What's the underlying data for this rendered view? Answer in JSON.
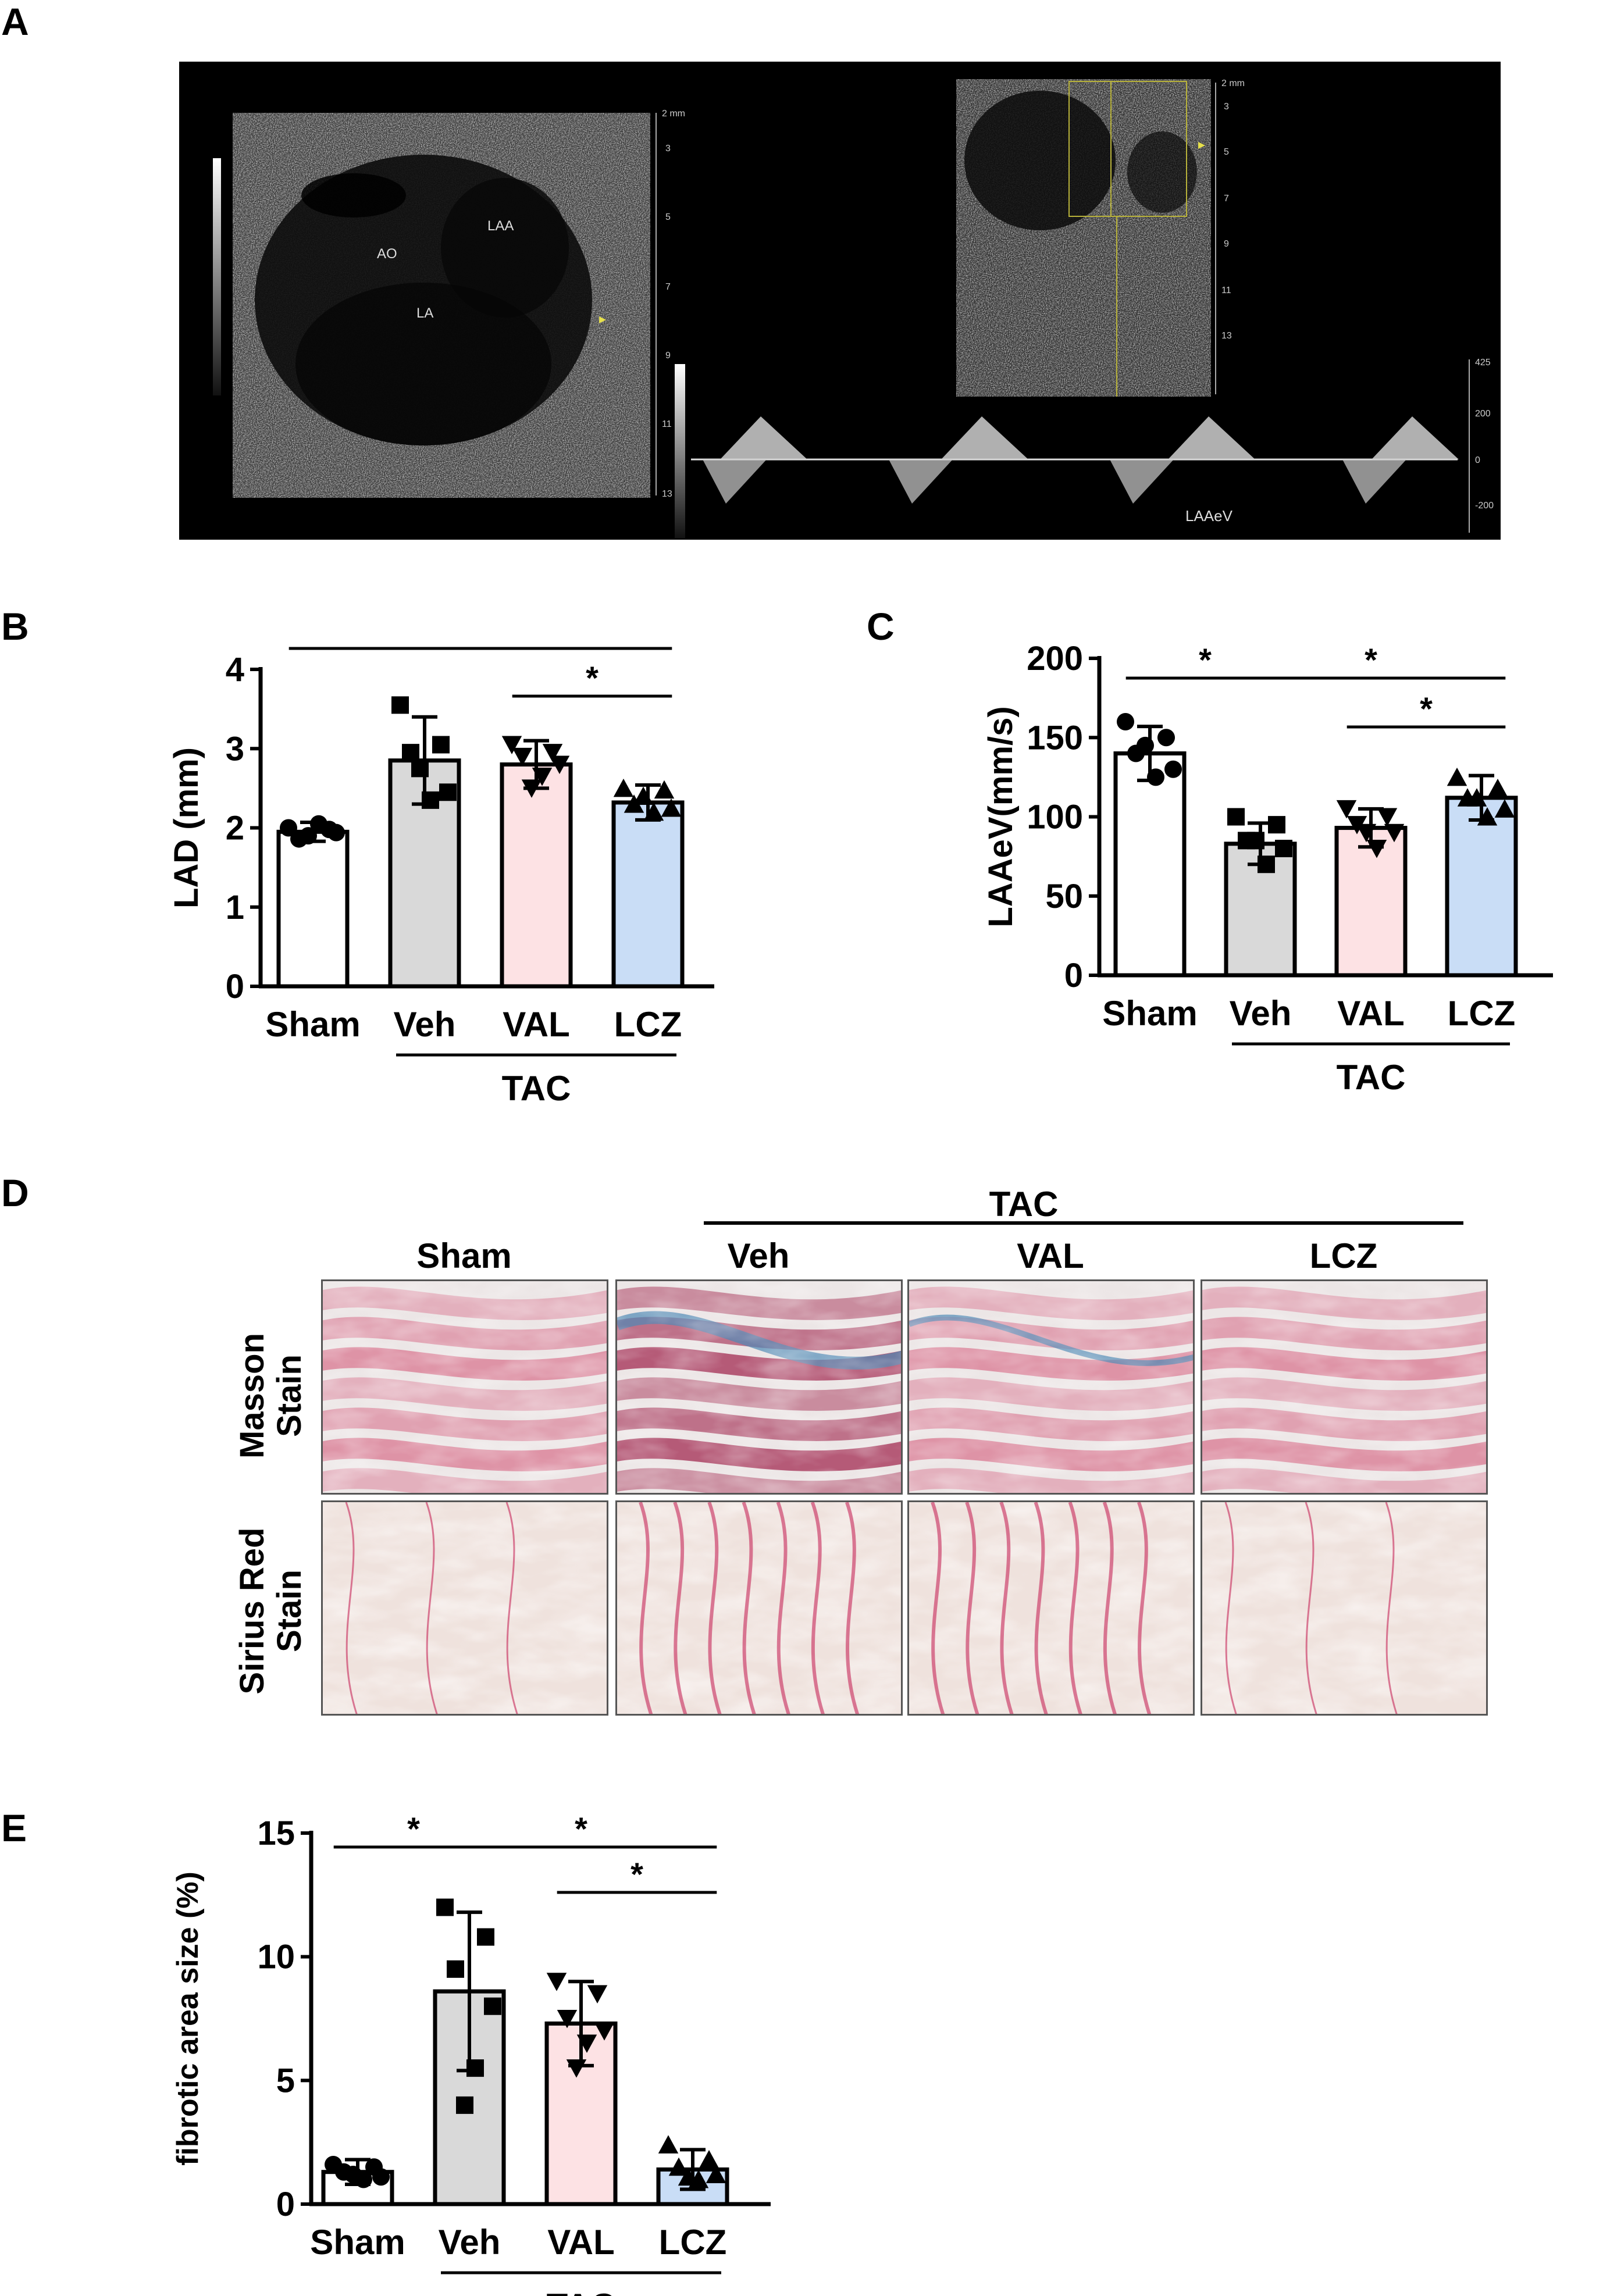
{
  "panels": {
    "A": {
      "label": "A",
      "echo": {
        "image_labels": [
          "LAA",
          "AO",
          "LA"
        ],
        "depth_ticks": [
          "2 mm",
          "3",
          "5",
          "7",
          "9",
          "11",
          "13"
        ],
        "doppler_label": "LAAeV",
        "velocity_ticks": [
          "425",
          "200",
          "0",
          "-200"
        ]
      }
    },
    "B": {
      "label": "B"
    },
    "C": {
      "label": "C"
    },
    "D": {
      "label": "D",
      "group_label": "TAC",
      "columns": [
        "Sham",
        "Veh",
        "VAL",
        "LCZ"
      ],
      "rows": [
        {
          "line1": "Masson",
          "line2": "Stain"
        },
        {
          "line1": "Sirius Red",
          "line2": "Stain"
        }
      ],
      "tint_colors": {
        "masson_muscle": "#d9738e",
        "masson_dark": "#a0244c",
        "masson_collagen": "#4f89b5",
        "sirius_bg": "#efe2dd",
        "sirius_fiber": "#c6285a"
      }
    },
    "E": {
      "label": "E"
    }
  },
  "chart_data": [
    {
      "id": "B",
      "type": "bar",
      "categories": [
        "Sham",
        "Veh",
        "VAL",
        "LCZ"
      ],
      "values": [
        1.95,
        2.85,
        2.8,
        2.32
      ],
      "errors": [
        0.12,
        0.55,
        0.3,
        0.22
      ],
      "points": [
        [
          2.0,
          1.98,
          1.86,
          1.94,
          2.05,
          1.9
        ],
        [
          3.55,
          3.05,
          2.95,
          2.45,
          2.35,
          2.75
        ],
        [
          3.05,
          2.95,
          2.9,
          2.8,
          2.65,
          2.5
        ],
        [
          2.5,
          2.48,
          2.3,
          2.25,
          2.2,
          2.4
        ]
      ],
      "markers": [
        "circle",
        "square",
        "triangle-down",
        "triangle-up"
      ],
      "colors": [
        "#ffffff",
        "#d9d9d9",
        "#fde2e4",
        "#c9ddf6"
      ],
      "xlabel": "",
      "ylabel": "LAD (mm)",
      "ylim": [
        0,
        4
      ],
      "yticks": [
        "0",
        "1",
        "2",
        "3",
        "4"
      ],
      "group_label": "TAC",
      "significance": [
        {
          "from": 0,
          "to": 1,
          "label": "*"
        },
        {
          "from": 1,
          "to": 3,
          "label": "*"
        },
        {
          "from": 2,
          "to": 3,
          "label": "*"
        }
      ]
    },
    {
      "id": "C",
      "type": "bar",
      "categories": [
        "Sham",
        "Veh",
        "VAL",
        "LCZ"
      ],
      "values": [
        140,
        83,
        93,
        112
      ],
      "errors": [
        17,
        13,
        12,
        14
      ],
      "points": [
        [
          160,
          150,
          140,
          130,
          125,
          145
        ],
        [
          100,
          95,
          85,
          80,
          70,
          85
        ],
        [
          105,
          100,
          95,
          90,
          80,
          90
        ],
        [
          125,
          118,
          112,
          105,
          100,
          112
        ]
      ],
      "markers": [
        "circle",
        "square",
        "triangle-down",
        "triangle-up"
      ],
      "colors": [
        "#ffffff",
        "#d9d9d9",
        "#fde2e4",
        "#c9ddf6"
      ],
      "xlabel": "",
      "ylabel": "LAAeV(mm/s)",
      "ylim": [
        0,
        200
      ],
      "yticks": [
        "0",
        "50",
        "100",
        "150",
        "200"
      ],
      "group_label": "TAC",
      "significance": [
        {
          "from": 0,
          "to": 1,
          "label": "*"
        },
        {
          "from": 1,
          "to": 3,
          "label": "*"
        },
        {
          "from": 2,
          "to": 3,
          "label": "*"
        }
      ]
    },
    {
      "id": "E",
      "type": "bar",
      "categories": [
        "Sham",
        "Veh",
        "VAL",
        "LCZ"
      ],
      "values": [
        1.3,
        8.6,
        7.3,
        1.4
      ],
      "errors": [
        0.5,
        3.2,
        1.7,
        0.8
      ],
      "points": [
        [
          1.6,
          1.5,
          1.3,
          1.1,
          1.0,
          1.2
        ],
        [
          12.0,
          10.8,
          9.5,
          8.0,
          5.5,
          4.0
        ],
        [
          9.0,
          8.5,
          7.5,
          7.0,
          6.5,
          5.5
        ],
        [
          2.4,
          1.8,
          1.5,
          1.2,
          1.0,
          1.1
        ]
      ],
      "markers": [
        "circle",
        "square",
        "triangle-down",
        "triangle-up"
      ],
      "colors": [
        "#ffffff",
        "#d9d9d9",
        "#fde2e4",
        "#c9ddf6"
      ],
      "xlabel": "",
      "ylabel": "fibrotic area size (%)",
      "ylim": [
        0,
        15
      ],
      "yticks": [
        "0",
        "5",
        "10",
        "15"
      ],
      "group_label": "TAC",
      "significance": [
        {
          "from": 0,
          "to": 1,
          "label": "*"
        },
        {
          "from": 1,
          "to": 3,
          "label": "*"
        },
        {
          "from": 2,
          "to": 3,
          "label": "*"
        }
      ]
    }
  ]
}
